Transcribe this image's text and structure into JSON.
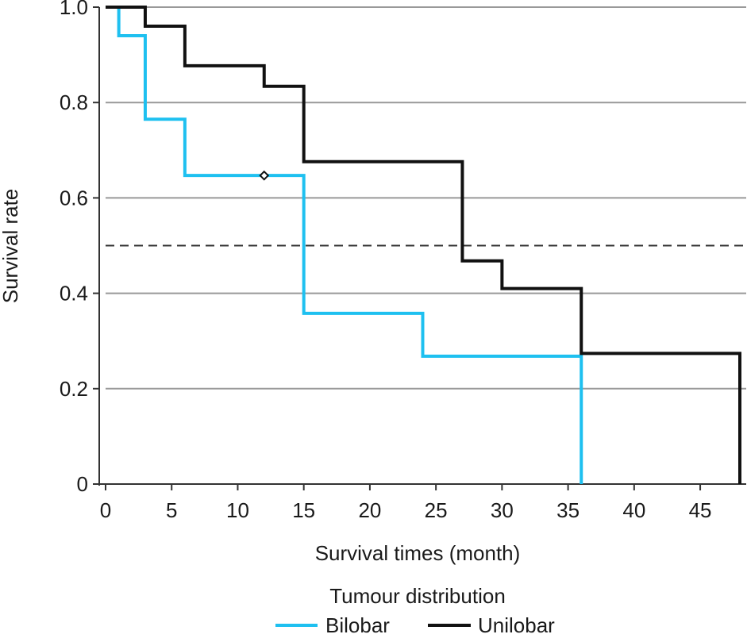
{
  "chart_data": {
    "type": "line",
    "subtype": "kaplan-meier-step",
    "xlabel": "Survival times (month)",
    "ylabel": "Survival rate",
    "xlim": [
      0,
      48
    ],
    "ylim": [
      0,
      1.0
    ],
    "x_ticks": [
      0,
      5,
      10,
      15,
      20,
      25,
      30,
      35,
      40,
      45
    ],
    "y_ticks": [
      0,
      0.2,
      0.4,
      0.6,
      0.8,
      1.0
    ],
    "x_tick_labels": [
      "0",
      "5",
      "10",
      "15",
      "20",
      "25",
      "30",
      "35",
      "40",
      "45"
    ],
    "y_tick_labels": [
      "0",
      "0.2",
      "0.4",
      "0.6",
      "0.8",
      "1.0"
    ],
    "grid": "horizontal",
    "reference_line": {
      "y": 0.5,
      "style": "dashed"
    },
    "legend": {
      "title": "Tumour distribution",
      "placement": "bottom",
      "entries": [
        "Bilobar",
        "Unilobar"
      ]
    },
    "series": [
      {
        "name": "Bilobar",
        "color": "#1ec0f0",
        "steps": [
          {
            "x": 0,
            "y": 1.0
          },
          {
            "x": 1,
            "y": 0.94
          },
          {
            "x": 3,
            "y": 0.765
          },
          {
            "x": 6,
            "y": 0.647
          },
          {
            "x": 15,
            "y": 0.358
          },
          {
            "x": 24,
            "y": 0.268
          },
          {
            "x": 36,
            "y": 0.0
          }
        ],
        "end_x": 36,
        "censored": [
          {
            "x": 12,
            "y": 0.647
          }
        ]
      },
      {
        "name": "Unilobar",
        "color": "#111111",
        "steps": [
          {
            "x": 0,
            "y": 1.0
          },
          {
            "x": 3,
            "y": 0.96
          },
          {
            "x": 6,
            "y": 0.877
          },
          {
            "x": 12,
            "y": 0.834
          },
          {
            "x": 15,
            "y": 0.676
          },
          {
            "x": 27,
            "y": 0.468
          },
          {
            "x": 30,
            "y": 0.41
          },
          {
            "x": 36,
            "y": 0.274
          },
          {
            "x": 48,
            "y": 0.0
          }
        ],
        "end_x": 48,
        "censored": []
      }
    ]
  }
}
